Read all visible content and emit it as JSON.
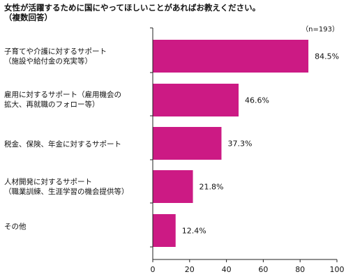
{
  "chart_data": {
    "type": "bar",
    "orientation": "horizontal",
    "title": "女性が活躍するために国にやってほしいことがあればお教えください。\n（複数回答）",
    "note": "（n=193）",
    "categories": [
      "子育てや介護に対するサポート\n（施設や給付金の充実等）",
      "雇用に対するサポート（雇用機会の\n拡大、再就職のフォロー等）",
      "税金、保険、年金に対するサポート",
      "人材開発に対するサポート\n（職業訓練、生涯学習の機会提供等）",
      "その他"
    ],
    "values": [
      84.5,
      46.6,
      37.3,
      21.8,
      12.4
    ],
    "value_labels": [
      "84.5%",
      "46.6%",
      "37.3%",
      "21.8%",
      "12.4%"
    ],
    "xlim": [
      0,
      100
    ],
    "xticks": [
      0,
      20,
      40,
      60,
      80,
      100
    ],
    "bar_color": "#cc1a84",
    "grid": false
  }
}
